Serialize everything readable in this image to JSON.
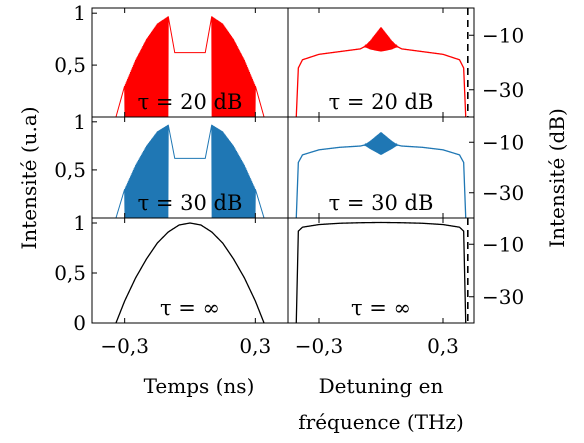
{
  "figure": {
    "ylabel_left": "Intensité (u.a)",
    "ylabel_right": "Intensité (dB)",
    "xlabel_left": "Temps (ns)",
    "xlabel_right_line1": "Detuning en",
    "xlabel_right_line2": "fréquence (THz)"
  },
  "colors": {
    "red": "#ff0000",
    "blue": "#1f77b4",
    "black": "#000000"
  },
  "chart_data": [
    {
      "type": "line",
      "panel": "time",
      "row": 1,
      "color": "red",
      "annotation": "τ = 20 dB",
      "xlim": [
        -0.45,
        0.45
      ],
      "ylim": [
        0,
        1.05
      ],
      "xticks": [
        -0.3,
        0.3
      ],
      "yticks": [
        0.5,
        1
      ],
      "yticklabels": [
        "0,5",
        "1"
      ],
      "x": [
        -0.34,
        -0.3,
        -0.25,
        -0.2,
        -0.15,
        -0.1,
        -0.07,
        -0.05,
        0.0,
        0.05,
        0.07,
        0.1,
        0.15,
        0.2,
        0.25,
        0.3,
        0.34
      ],
      "y": [
        0.0,
        0.3,
        0.55,
        0.75,
        0.9,
        0.97,
        0.62,
        0.62,
        0.62,
        0.62,
        0.62,
        0.97,
        0.9,
        0.75,
        0.55,
        0.3,
        0.0
      ],
      "oscillating_ranges": [
        [
          -0.3,
          -0.1
        ],
        [
          0.1,
          0.3
        ]
      ]
    },
    {
      "type": "line",
      "panel": "spectrum",
      "row": 1,
      "color": "red",
      "annotation": "τ = 20 dB",
      "xlim": [
        -0.45,
        0.45
      ],
      "ylim": [
        -40,
        0
      ],
      "xticks": [
        -0.3,
        0.3
      ],
      "yticks": [
        -10,
        -30
      ],
      "yticklabels": [
        "−10",
        "−30"
      ],
      "x": [
        -0.41,
        -0.4,
        -0.38,
        -0.3,
        -0.2,
        -0.1,
        -0.05,
        0.0,
        0.05,
        0.1,
        0.2,
        0.3,
        0.38,
        0.4,
        0.41
      ],
      "y": [
        -40,
        -22,
        -19,
        -17,
        -16,
        -15,
        -13,
        -10,
        -13,
        -15,
        -16,
        -17,
        -19,
        -22,
        -40
      ],
      "dashed_vline_x": 0.42
    },
    {
      "type": "line",
      "panel": "time",
      "row": 2,
      "color": "blue",
      "annotation": "τ = 30 dB",
      "xlim": [
        -0.45,
        0.45
      ],
      "ylim": [
        0,
        1.05
      ],
      "xticks": [
        -0.3,
        0.3
      ],
      "yticks": [
        0.5,
        1
      ],
      "yticklabels": [
        "0,5",
        "1"
      ],
      "x": [
        -0.34,
        -0.3,
        -0.25,
        -0.2,
        -0.15,
        -0.1,
        -0.07,
        -0.05,
        0.0,
        0.05,
        0.07,
        0.1,
        0.15,
        0.2,
        0.25,
        0.3,
        0.34
      ],
      "y": [
        0.0,
        0.3,
        0.55,
        0.75,
        0.9,
        0.97,
        0.62,
        0.62,
        0.62,
        0.62,
        0.62,
        0.97,
        0.9,
        0.75,
        0.55,
        0.3,
        0.0
      ],
      "oscillating_ranges": [
        [
          -0.3,
          -0.1
        ],
        [
          0.1,
          0.3
        ]
      ]
    },
    {
      "type": "line",
      "panel": "spectrum",
      "row": 2,
      "color": "blue",
      "annotation": "τ = 30 dB",
      "xlim": [
        -0.45,
        0.45
      ],
      "ylim": [
        -40,
        0
      ],
      "xticks": [
        -0.3,
        0.3
      ],
      "yticks": [
        -10,
        -30
      ],
      "yticklabels": [
        "−10",
        "−30"
      ],
      "x": [
        -0.41,
        -0.4,
        -0.38,
        -0.3,
        -0.2,
        -0.1,
        -0.05,
        0.0,
        0.05,
        0.1,
        0.2,
        0.3,
        0.38,
        0.4,
        0.41
      ],
      "y": [
        -40,
        -18,
        -15,
        -13,
        -12,
        -11.5,
        -10.5,
        -9,
        -10.5,
        -11.5,
        -12,
        -13,
        -15,
        -18,
        -40
      ]
    },
    {
      "type": "line",
      "panel": "time",
      "row": 3,
      "color": "black",
      "annotation": "τ = ∞",
      "xlim": [
        -0.45,
        0.45
      ],
      "ylim": [
        0,
        1.05
      ],
      "xticks": [
        -0.3,
        0.3
      ],
      "yticks": [
        0,
        0.5,
        1
      ],
      "yticklabels": [
        "0",
        "0,5",
        "1"
      ],
      "xticklabels": [
        "−0,3",
        "0,3"
      ],
      "x": [
        -0.34,
        -0.3,
        -0.25,
        -0.2,
        -0.15,
        -0.1,
        -0.05,
        0.0,
        0.05,
        0.1,
        0.15,
        0.2,
        0.25,
        0.3,
        0.34
      ],
      "y": [
        0.0,
        0.22,
        0.45,
        0.64,
        0.8,
        0.91,
        0.98,
        1.0,
        0.98,
        0.91,
        0.8,
        0.64,
        0.45,
        0.22,
        0.0
      ]
    },
    {
      "type": "line",
      "panel": "spectrum",
      "row": 3,
      "color": "black",
      "annotation": "τ = ∞",
      "xlim": [
        -0.45,
        0.45
      ],
      "ylim": [
        -40,
        0
      ],
      "xticks": [
        -0.3,
        0.3
      ],
      "yticks": [
        -10,
        -30
      ],
      "yticklabels": [
        "−10",
        "−30"
      ],
      "xticklabels": [
        "−0,3",
        "0,3"
      ],
      "x": [
        -0.41,
        -0.4,
        -0.38,
        -0.3,
        -0.2,
        -0.1,
        0.0,
        0.1,
        0.2,
        0.3,
        0.38,
        0.4,
        0.41
      ],
      "y": [
        -40,
        -5,
        -3.5,
        -2.5,
        -2,
        -1.8,
        -1.7,
        -1.8,
        -2,
        -2.5,
        -3.5,
        -5,
        -40
      ],
      "dashed_vline_x": 0.42
    }
  ]
}
